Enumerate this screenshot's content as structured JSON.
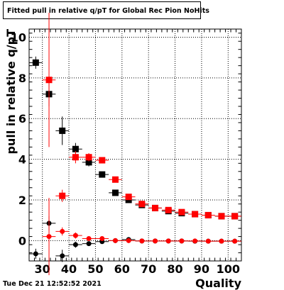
{
  "header": {
    "title": "Fitted pull in relative q/pT  for Global Rec Pion NoHits"
  },
  "footer": {
    "date": "Tue Dec 21 12:52:52 2021"
  },
  "chart_data": {
    "type": "scatter",
    "title": "Fitted pull in relative q/pT  for Global Rec Pion NoHits",
    "xlabel": "Quality",
    "ylabel": "pull in relative q/pT",
    "xlim": [
      25,
      105
    ],
    "ylim": [
      -1,
      10.4
    ],
    "grid": true,
    "x_ticks": [
      30,
      40,
      50,
      60,
      70,
      80,
      90,
      100
    ],
    "y_ticks": [
      0,
      2,
      4,
      6,
      8,
      10
    ],
    "series": [
      {
        "color": "#000000",
        "marker": "square",
        "x": [
          27.5,
          32.5,
          37.5,
          42.5,
          47.5,
          52.5,
          57.5,
          62.5,
          67.5,
          72.5,
          77.5,
          82.5,
          87.5,
          92.5,
          97.5,
          102.5
        ],
        "y": [
          8.75,
          7.2,
          5.4,
          4.5,
          3.85,
          3.25,
          2.35,
          2.0,
          1.75,
          1.6,
          1.45,
          1.35,
          1.3,
          1.25,
          1.2,
          1.2
        ],
        "yerr": [
          0.3,
          0.6,
          0.7,
          0.3,
          0.2,
          0.12,
          0.1,
          0.08,
          0.06,
          0.05,
          0.05,
          0.05,
          0.05,
          0.05,
          0.05,
          0.05
        ]
      },
      {
        "color": "#ff0000",
        "marker": "square",
        "x": [
          32.5,
          37.5,
          42.5,
          47.5,
          52.5,
          57.5,
          62.5,
          67.5,
          72.5,
          77.5,
          82.5,
          87.5,
          92.5,
          97.5,
          102.5
        ],
        "y": [
          7.9,
          2.2,
          4.1,
          4.1,
          3.95,
          3.0,
          2.15,
          1.8,
          1.6,
          1.5,
          1.4,
          1.3,
          1.25,
          1.2,
          1.2
        ],
        "yerr": [
          3.3,
          0.3,
          0.3,
          0.2,
          0.12,
          0.1,
          0.08,
          0.06,
          0.05,
          0.05,
          0.05,
          0.05,
          0.05,
          0.05,
          0.05
        ]
      },
      {
        "color": "#000000",
        "marker": "circle",
        "x": [
          27.5,
          32.5,
          37.5,
          42.5,
          47.5,
          52.5,
          57.5,
          62.5,
          67.5,
          72.5,
          77.5,
          82.5,
          87.5,
          92.5,
          97.5,
          102.5
        ],
        "y": [
          -0.65,
          0.85,
          -0.75,
          -0.2,
          -0.15,
          -0.05,
          0.0,
          0.05,
          -0.02,
          -0.02,
          -0.02,
          -0.02,
          -0.03,
          -0.03,
          -0.03,
          -0.03
        ],
        "yerr": [
          0.25,
          0.35,
          0.3,
          0.15,
          0.1,
          0.08,
          0.05,
          0.04,
          0.03,
          0.03,
          0.03,
          0.03,
          0.03,
          0.03,
          0.03,
          0.03
        ]
      },
      {
        "color": "#ff0000",
        "marker": "circle",
        "x": [
          32.5,
          37.5,
          42.5,
          47.5,
          52.5,
          57.5,
          62.5,
          67.5,
          72.5,
          77.5,
          82.5,
          87.5,
          92.5,
          97.5,
          102.5
        ],
        "y": [
          0.2,
          0.45,
          0.25,
          0.1,
          0.1,
          0.0,
          0.0,
          -0.02,
          -0.02,
          -0.02,
          -0.02,
          -0.02,
          -0.03,
          -0.03,
          -0.03
        ],
        "yerr": [
          1.9,
          0.2,
          0.15,
          0.1,
          0.08,
          0.05,
          0.04,
          0.03,
          0.03,
          0.03,
          0.03,
          0.03,
          0.03,
          0.03,
          0.03
        ]
      }
    ]
  }
}
